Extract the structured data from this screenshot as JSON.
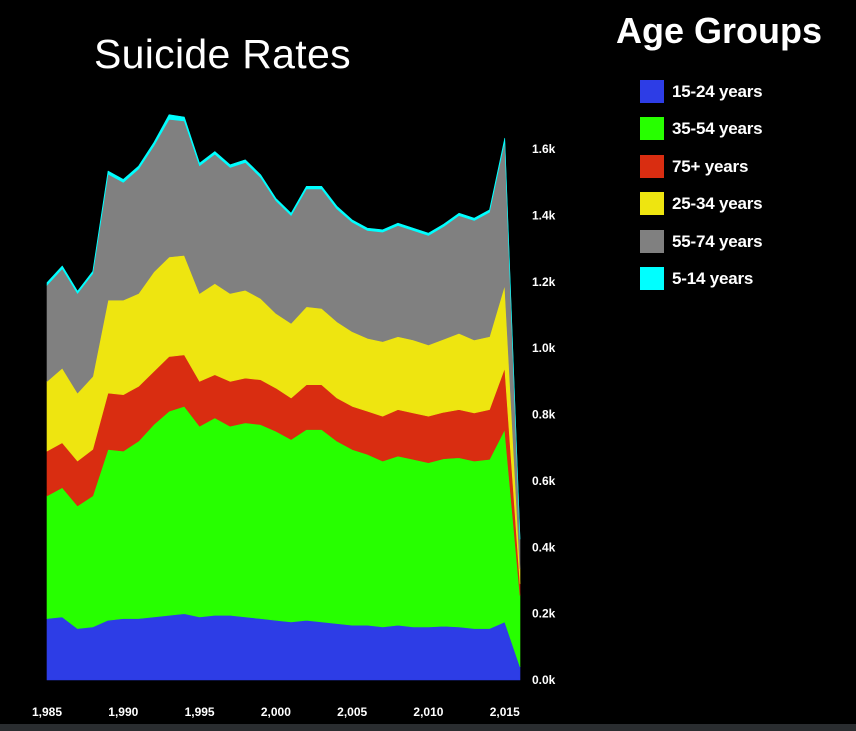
{
  "chart_data": {
    "type": "area",
    "stacked": true,
    "title": "Suicide Rates",
    "legend_title": "Age Groups",
    "legend_position": "right",
    "xlabel": "",
    "ylabel": "",
    "xlim": [
      1985,
      2016
    ],
    "ylim": [
      0,
      1700
    ],
    "x_ticks": [
      1985,
      1990,
      1995,
      2000,
      2005,
      2010,
      2015
    ],
    "x_tick_labels": [
      "1,985",
      "1,990",
      "1,995",
      "2,000",
      "2,005",
      "2,010",
      "2,015"
    ],
    "y_ticks": [
      0,
      200,
      400,
      600,
      800,
      1000,
      1200,
      1400,
      1600
    ],
    "y_tick_labels": [
      "0.0k",
      "0.2k",
      "0.4k",
      "0.6k",
      "0.8k",
      "1.0k",
      "1.2k",
      "1.4k",
      "1.6k"
    ],
    "grid": false,
    "x": [
      1985,
      1986,
      1987,
      1988,
      1989,
      1990,
      1991,
      1992,
      1993,
      1994,
      1995,
      1996,
      1997,
      1998,
      1999,
      2000,
      2001,
      2002,
      2003,
      2004,
      2005,
      2006,
      2007,
      2008,
      2009,
      2010,
      2011,
      2012,
      2013,
      2014,
      2015,
      2016
    ],
    "series": [
      {
        "name": "15-24 years",
        "color": "#2d3de6",
        "values": [
          185,
          190,
          155,
          160,
          180,
          185,
          185,
          190,
          195,
          200,
          190,
          195,
          195,
          190,
          185,
          180,
          175,
          180,
          175,
          170,
          165,
          165,
          160,
          165,
          160,
          160,
          162,
          160,
          155,
          155,
          175,
          40
        ]
      },
      {
        "name": "35-54 years",
        "color": "#27ff00",
        "values": [
          370,
          390,
          370,
          395,
          515,
          505,
          535,
          580,
          615,
          625,
          575,
          595,
          570,
          585,
          585,
          570,
          550,
          575,
          580,
          550,
          530,
          515,
          500,
          510,
          505,
          495,
          505,
          510,
          505,
          510,
          580,
          215
        ]
      },
      {
        "name": "75+ years",
        "color": "#d92d11",
        "values": [
          135,
          135,
          135,
          140,
          170,
          170,
          165,
          160,
          165,
          155,
          135,
          130,
          135,
          135,
          135,
          130,
          125,
          135,
          135,
          130,
          130,
          130,
          135,
          140,
          140,
          140,
          140,
          145,
          145,
          150,
          185,
          35
        ]
      },
      {
        "name": "25-34 years",
        "color": "#eee510",
        "values": [
          210,
          225,
          205,
          220,
          280,
          285,
          280,
          300,
          300,
          300,
          265,
          275,
          265,
          265,
          245,
          225,
          225,
          235,
          230,
          230,
          225,
          220,
          225,
          220,
          220,
          215,
          220,
          230,
          220,
          220,
          250,
          45
        ]
      },
      {
        "name": "55-74 years",
        "color": "#808080",
        "values": [
          290,
          300,
          300,
          310,
          380,
          355,
          375,
          380,
          415,
          405,
          385,
          390,
          380,
          385,
          365,
          340,
          325,
          355,
          360,
          340,
          330,
          325,
          330,
          335,
          330,
          330,
          340,
          355,
          360,
          375,
          435,
          90
        ]
      },
      {
        "name": "5-14 years",
        "color": "#00ffff",
        "values": [
          8,
          8,
          7,
          7,
          9,
          9,
          9,
          10,
          14,
          12,
          8,
          8,
          8,
          8,
          8,
          7,
          7,
          8,
          8,
          8,
          7,
          7,
          7,
          7,
          7,
          7,
          7,
          7,
          7,
          7,
          8,
          2
        ]
      }
    ]
  }
}
